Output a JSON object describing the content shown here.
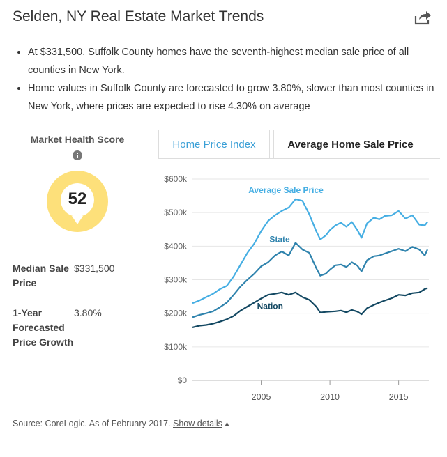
{
  "header": {
    "title": "Selden, NY Real Estate Market Trends",
    "share_icon": "share-icon"
  },
  "bullets": [
    "At $331,500, Suffolk County homes have the seventh-highest median sale price of all counties in New York.",
    "Home values in Suffolk County are forecasted to grow 3.80%, slower than most counties in New York, where prices are expected to rise 4.30% on average"
  ],
  "market_health": {
    "label": "Market Health Score",
    "score": "52",
    "badge_color": "#fde07a",
    "info_icon": "info-icon"
  },
  "stats": {
    "median_label": "Median Sale Price",
    "median_value": "$331,500",
    "growth_label": "1-Year Forecasted Price Growth",
    "growth_value": "3.80%"
  },
  "tabs": {
    "home_price_index": "Home Price Index",
    "average_home_sale_price": "Average Home Sale Price",
    "active": "average_home_sale_price"
  },
  "source": {
    "text": "Source: CoreLogic. As of February 2017.",
    "link": "Show details"
  },
  "chart_data": {
    "type": "line",
    "ylim": [
      0,
      600000
    ],
    "xlim": [
      2000,
      2017.2
    ],
    "y_ticks": [
      0,
      100000,
      200000,
      300000,
      400000,
      500000,
      600000
    ],
    "y_tick_labels": [
      "$0",
      "$100k",
      "$200k",
      "$300k",
      "$400k",
      "$500k",
      "$600k"
    ],
    "x_ticks": [
      2005,
      2010,
      2015
    ],
    "x_tick_labels": [
      "2005",
      "2010",
      "2015"
    ],
    "grid": "horizontal",
    "series": [
      {
        "name": "Average Sale Price",
        "color": "#45aee3",
        "points": [
          [
            2000.0,
            230000
          ],
          [
            2000.5,
            238000
          ],
          [
            2001.0,
            248000
          ],
          [
            2001.5,
            258000
          ],
          [
            2002.0,
            272000
          ],
          [
            2002.5,
            282000
          ],
          [
            2003.0,
            310000
          ],
          [
            2003.5,
            345000
          ],
          [
            2004.0,
            380000
          ],
          [
            2004.5,
            408000
          ],
          [
            2005.0,
            445000
          ],
          [
            2005.5,
            475000
          ],
          [
            2006.0,
            492000
          ],
          [
            2006.5,
            505000
          ],
          [
            2007.0,
            515000
          ],
          [
            2007.5,
            540000
          ],
          [
            2008.0,
            535000
          ],
          [
            2008.5,
            495000
          ],
          [
            2009.0,
            445000
          ],
          [
            2009.3,
            420000
          ],
          [
            2009.7,
            432000
          ],
          [
            2010.0,
            448000
          ],
          [
            2010.4,
            462000
          ],
          [
            2010.8,
            470000
          ],
          [
            2011.2,
            458000
          ],
          [
            2011.6,
            472000
          ],
          [
            2012.0,
            448000
          ],
          [
            2012.3,
            425000
          ],
          [
            2012.7,
            468000
          ],
          [
            2013.2,
            485000
          ],
          [
            2013.6,
            480000
          ],
          [
            2014.0,
            490000
          ],
          [
            2014.5,
            492000
          ],
          [
            2015.0,
            505000
          ],
          [
            2015.5,
            482000
          ],
          [
            2016.0,
            492000
          ],
          [
            2016.5,
            464000
          ],
          [
            2016.9,
            462000
          ],
          [
            2017.1,
            472000
          ]
        ]
      },
      {
        "name": "State",
        "color": "#2f83ad",
        "points": [
          [
            2000.0,
            188000
          ],
          [
            2000.5,
            195000
          ],
          [
            2001.0,
            200000
          ],
          [
            2001.5,
            206000
          ],
          [
            2002.0,
            218000
          ],
          [
            2002.5,
            232000
          ],
          [
            2003.0,
            255000
          ],
          [
            2003.5,
            280000
          ],
          [
            2004.0,
            300000
          ],
          [
            2004.5,
            318000
          ],
          [
            2005.0,
            340000
          ],
          [
            2005.5,
            352000
          ],
          [
            2006.0,
            372000
          ],
          [
            2006.5,
            384000
          ],
          [
            2007.0,
            372000
          ],
          [
            2007.5,
            410000
          ],
          [
            2008.0,
            390000
          ],
          [
            2008.5,
            380000
          ],
          [
            2009.0,
            335000
          ],
          [
            2009.3,
            312000
          ],
          [
            2009.7,
            318000
          ],
          [
            2010.0,
            330000
          ],
          [
            2010.4,
            343000
          ],
          [
            2010.8,
            345000
          ],
          [
            2011.2,
            338000
          ],
          [
            2011.6,
            352000
          ],
          [
            2012.0,
            342000
          ],
          [
            2012.3,
            325000
          ],
          [
            2012.7,
            358000
          ],
          [
            2013.2,
            370000
          ],
          [
            2013.6,
            372000
          ],
          [
            2014.0,
            378000
          ],
          [
            2014.5,
            385000
          ],
          [
            2015.0,
            392000
          ],
          [
            2015.5,
            385000
          ],
          [
            2016.0,
            398000
          ],
          [
            2016.5,
            390000
          ],
          [
            2016.9,
            372000
          ],
          [
            2017.1,
            390000
          ]
        ]
      },
      {
        "name": "Nation",
        "color": "#134862",
        "points": [
          [
            2000.0,
            158000
          ],
          [
            2000.5,
            163000
          ],
          [
            2001.0,
            165000
          ],
          [
            2001.5,
            169000
          ],
          [
            2002.0,
            175000
          ],
          [
            2002.5,
            182000
          ],
          [
            2003.0,
            192000
          ],
          [
            2003.5,
            208000
          ],
          [
            2004.0,
            220000
          ],
          [
            2004.5,
            232000
          ],
          [
            2005.0,
            244000
          ],
          [
            2005.5,
            255000
          ],
          [
            2006.0,
            258000
          ],
          [
            2006.5,
            262000
          ],
          [
            2007.0,
            255000
          ],
          [
            2007.5,
            262000
          ],
          [
            2008.0,
            248000
          ],
          [
            2008.5,
            240000
          ],
          [
            2009.0,
            220000
          ],
          [
            2009.3,
            202000
          ],
          [
            2009.7,
            204000
          ],
          [
            2010.0,
            205000
          ],
          [
            2010.4,
            206000
          ],
          [
            2010.8,
            208000
          ],
          [
            2011.2,
            203000
          ],
          [
            2011.6,
            210000
          ],
          [
            2012.0,
            205000
          ],
          [
            2012.3,
            197000
          ],
          [
            2012.7,
            215000
          ],
          [
            2013.2,
            225000
          ],
          [
            2013.6,
            232000
          ],
          [
            2014.0,
            238000
          ],
          [
            2014.5,
            245000
          ],
          [
            2015.0,
            255000
          ],
          [
            2015.5,
            253000
          ],
          [
            2016.0,
            260000
          ],
          [
            2016.5,
            262000
          ],
          [
            2016.9,
            272000
          ],
          [
            2017.1,
            275000
          ]
        ]
      }
    ]
  }
}
